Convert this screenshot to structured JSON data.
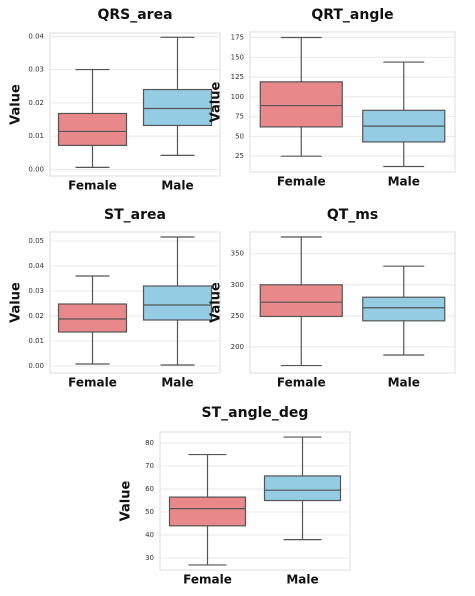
{
  "chart_data": [
    {
      "type": "box",
      "title": "QRS_area",
      "y_label": "Value",
      "categories": [
        "Female",
        "Male"
      ],
      "colors": [
        "#e8888a",
        "#93cce3"
      ],
      "values": [
        {
          "low": 0.0006,
          "q1": 0.0072,
          "median": 0.0114,
          "q3": 0.0168,
          "high": 0.03
        },
        {
          "low": 0.0042,
          "q1": 0.0132,
          "median": 0.0183,
          "q3": 0.024,
          "high": 0.0397
        }
      ],
      "ylim": [
        -0.002,
        0.041
      ],
      "yticks": [
        {
          "value": 0,
          "label": "0.00"
        },
        0.01,
        0.02,
        0.03,
        0.04
      ],
      "grid": true
    },
    {
      "type": "box",
      "title": "QRT_angle",
      "y_label": "Value",
      "categories": [
        "Female",
        "Male"
      ],
      "colors": [
        "#e8888a",
        "#93cce3"
      ],
      "values": [
        {
          "low": 25,
          "q1": 62,
          "median": 89,
          "q3": 119,
          "high": 175
        },
        {
          "low": 12,
          "q1": 43,
          "median": 63,
          "q3": 83,
          "high": 144
        }
      ],
      "ylim": [
        5,
        182
      ],
      "yticks": [
        25,
        50,
        75,
        100,
        125,
        150,
        175
      ],
      "grid": true
    },
    {
      "type": "box",
      "title": "ST_area",
      "y_label": "Value",
      "categories": [
        "Female",
        "Male"
      ],
      "colors": [
        "#e8888a",
        "#93cce3"
      ],
      "values": [
        {
          "low": 0.0008,
          "q1": 0.0136,
          "median": 0.0188,
          "q3": 0.0248,
          "high": 0.036
        },
        {
          "low": 0.0004,
          "q1": 0.0184,
          "median": 0.0244,
          "q3": 0.032,
          "high": 0.0516
        }
      ],
      "ylim": [
        -0.0028,
        0.0536
      ],
      "yticks": [
        {
          "value": 0,
          "label": "0.00"
        },
        0.01,
        0.02,
        0.03,
        0.04,
        0.05
      ],
      "grid": true
    },
    {
      "type": "box",
      "title": "QT_ms",
      "y_label": "Value",
      "categories": [
        "Female",
        "Male"
      ],
      "colors": [
        "#e8888a",
        "#93cce3"
      ],
      "values": [
        {
          "low": 170,
          "q1": 249,
          "median": 272,
          "q3": 300,
          "high": 377
        },
        {
          "low": 187,
          "q1": 242,
          "median": 263,
          "q3": 280,
          "high": 330
        }
      ],
      "ylim": [
        158,
        385
      ],
      "yticks": [
        200,
        250,
        300,
        350
      ],
      "grid": true
    },
    {
      "type": "box",
      "title": "ST_angle_deg",
      "y_label": "Value",
      "categories": [
        "Female",
        "Male"
      ],
      "colors": [
        "#e8888a",
        "#93cce3"
      ],
      "values": [
        {
          "low": 27,
          "q1": 44,
          "median": 51.5,
          "q3": 56.5,
          "high": 75
        },
        {
          "low": 38,
          "q1": 55,
          "median": 59.5,
          "q3": 65.7,
          "high": 82.6
        }
      ],
      "ylim": [
        24.8,
        84.8
      ],
      "yticks": [
        30,
        40,
        50,
        60,
        70,
        80
      ],
      "grid": true
    }
  ]
}
